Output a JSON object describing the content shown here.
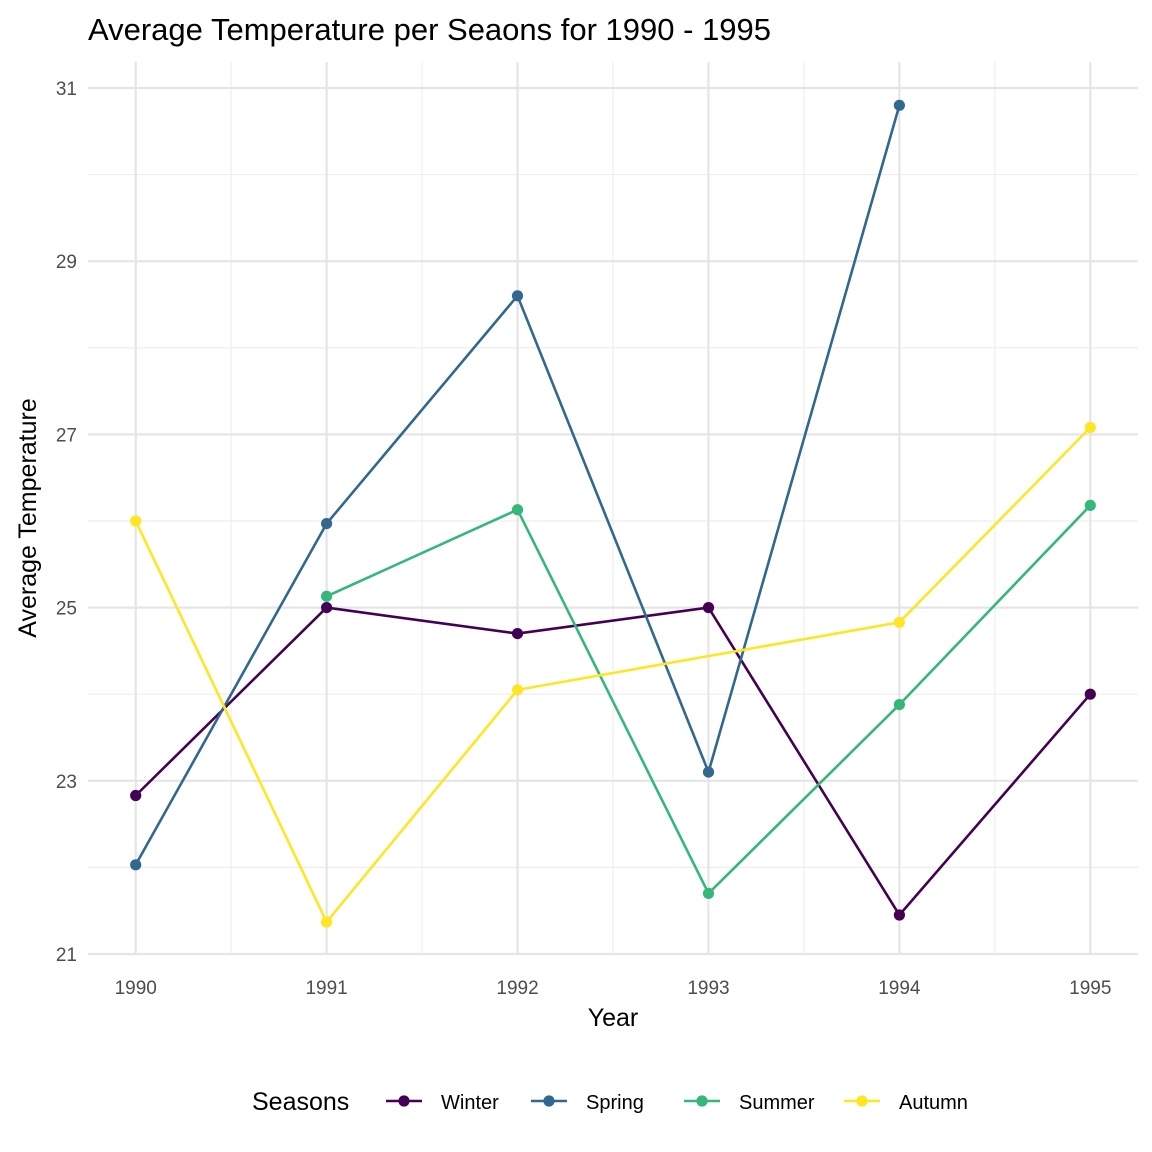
{
  "chart_data": {
    "type": "line",
    "title": "Average Temperature per Seaons for 1990 - 1995",
    "xlabel": "Year",
    "ylabel": "Average Temperature",
    "x": [
      1990,
      1991,
      1992,
      1993,
      1994,
      1995
    ],
    "x_tick_labels": [
      "1990",
      "1991",
      "1992",
      "1993",
      "1994",
      "1995"
    ],
    "y_ticks": [
      21,
      23,
      25,
      27,
      29,
      31
    ],
    "y_tick_labels": [
      "21",
      "23",
      "25",
      "27",
      "29",
      "31"
    ],
    "xlim": [
      1989.75,
      1995.25
    ],
    "ylim": [
      21,
      31.3
    ],
    "grid": true,
    "legend": {
      "title": "Seasons",
      "position": "bottom"
    },
    "series": [
      {
        "name": "Winter",
        "color": "#440154",
        "values": [
          22.83,
          25.0,
          24.7,
          25.0,
          21.45,
          24.0
        ]
      },
      {
        "name": "Spring",
        "color": "#31688E",
        "values": [
          22.03,
          25.97,
          28.6,
          23.1,
          30.8,
          null
        ]
      },
      {
        "name": "Summer",
        "color": "#35B779",
        "values": [
          null,
          25.13,
          26.13,
          21.7,
          23.88,
          26.18
        ]
      },
      {
        "name": "Autumn",
        "color": "#FDE725",
        "values": [
          26.0,
          21.37,
          24.05,
          null,
          24.83,
          27.08
        ]
      }
    ]
  }
}
